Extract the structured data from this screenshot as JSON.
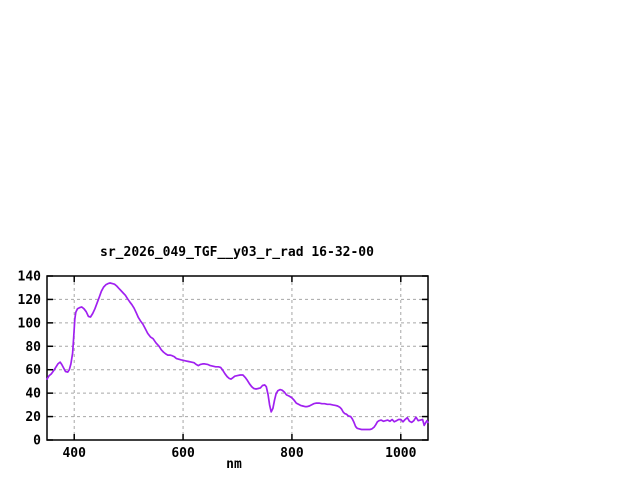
{
  "chart_data": {
    "type": "line",
    "title": "sr_2026_049_TGF__y03_r_rad 16-32-00",
    "xlabel": "nm",
    "ylabel": "",
    "xlim": [
      350,
      1050
    ],
    "ylim": [
      0,
      140
    ],
    "x_ticks": [
      400,
      600,
      800,
      1000
    ],
    "y_ticks": [
      0,
      20,
      40,
      60,
      80,
      100,
      120,
      140
    ],
    "grid": true,
    "legend_position": "none",
    "line_color": "#a020f0",
    "grid_color": "#a6a6a6",
    "border_color": "#000000",
    "background_color": "#ffffff",
    "series": [
      {
        "name": "sr_2026_049_TGF__y03_r_rad",
        "points": [
          [
            350,
            52
          ],
          [
            354,
            55
          ],
          [
            358,
            56.5
          ],
          [
            362,
            59
          ],
          [
            366,
            62
          ],
          [
            370,
            65
          ],
          [
            374,
            66.5
          ],
          [
            377,
            64.5
          ],
          [
            380,
            62
          ],
          [
            384,
            58.5
          ],
          [
            388,
            58
          ],
          [
            391,
            60
          ],
          [
            394,
            65
          ],
          [
            397,
            74
          ],
          [
            399,
            88
          ],
          [
            401,
            103
          ],
          [
            403,
            109
          ],
          [
            406,
            112
          ],
          [
            410,
            113
          ],
          [
            414,
            113.5
          ],
          [
            418,
            112
          ],
          [
            422,
            109.5
          ],
          [
            426,
            105.5
          ],
          [
            430,
            105
          ],
          [
            434,
            108
          ],
          [
            438,
            112
          ],
          [
            442,
            117
          ],
          [
            446,
            122
          ],
          [
            450,
            127
          ],
          [
            454,
            130.5
          ],
          [
            458,
            132.5
          ],
          [
            462,
            133.5
          ],
          [
            466,
            134
          ],
          [
            470,
            133.5
          ],
          [
            474,
            133
          ],
          [
            478,
            131.5
          ],
          [
            482,
            129.5
          ],
          [
            486,
            127.5
          ],
          [
            490,
            125.5
          ],
          [
            494,
            123.5
          ],
          [
            498,
            120.5
          ],
          [
            502,
            118
          ],
          [
            506,
            115.5
          ],
          [
            510,
            112.5
          ],
          [
            514,
            108.5
          ],
          [
            518,
            104.5
          ],
          [
            522,
            101.5
          ],
          [
            526,
            99
          ],
          [
            530,
            95.5
          ],
          [
            535,
            91
          ],
          [
            540,
            88
          ],
          [
            545,
            86.5
          ],
          [
            550,
            83
          ],
          [
            556,
            80
          ],
          [
            560,
            77
          ],
          [
            564,
            75
          ],
          [
            568,
            73.5
          ],
          [
            572,
            72.5
          ],
          [
            576,
            72.5
          ],
          [
            580,
            72
          ],
          [
            584,
            71
          ],
          [
            588,
            69.5
          ],
          [
            592,
            69
          ],
          [
            596,
            68.5
          ],
          [
            600,
            68
          ],
          [
            605,
            67.5
          ],
          [
            610,
            67
          ],
          [
            615,
            66.5
          ],
          [
            620,
            66
          ],
          [
            624,
            64.5
          ],
          [
            628,
            63.5
          ],
          [
            632,
            64.5
          ],
          [
            636,
            65
          ],
          [
            640,
            65
          ],
          [
            645,
            64.5
          ],
          [
            650,
            63.5
          ],
          [
            655,
            63
          ],
          [
            660,
            62.5
          ],
          [
            665,
            62.5
          ],
          [
            669,
            62
          ],
          [
            673,
            59.5
          ],
          [
            677,
            56.5
          ],
          [
            681,
            54
          ],
          [
            685,
            52.5
          ],
          [
            688,
            52
          ],
          [
            691,
            53
          ],
          [
            695,
            54.5
          ],
          [
            700,
            55
          ],
          [
            705,
            55.5
          ],
          [
            710,
            55.5
          ],
          [
            714,
            53.5
          ],
          [
            718,
            51
          ],
          [
            722,
            48
          ],
          [
            726,
            45.5
          ],
          [
            730,
            44
          ],
          [
            734,
            43.5
          ],
          [
            738,
            44
          ],
          [
            742,
            44.5
          ],
          [
            746,
            46.5
          ],
          [
            750,
            47
          ],
          [
            753,
            45.5
          ],
          [
            756,
            39
          ],
          [
            759,
            30
          ],
          [
            762,
            24
          ],
          [
            765,
            27
          ],
          [
            768,
            34
          ],
          [
            771,
            39.5
          ],
          [
            774,
            42
          ],
          [
            778,
            43
          ],
          [
            782,
            42.5
          ],
          [
            786,
            41
          ],
          [
            790,
            38.5
          ],
          [
            795,
            37.5
          ],
          [
            800,
            36
          ],
          [
            804,
            34
          ],
          [
            808,
            31.5
          ],
          [
            812,
            30.5
          ],
          [
            816,
            29.5
          ],
          [
            820,
            29
          ],
          [
            824,
            28.5
          ],
          [
            828,
            28.5
          ],
          [
            832,
            29
          ],
          [
            836,
            30
          ],
          [
            840,
            31
          ],
          [
            845,
            31.5
          ],
          [
            850,
            31.5
          ],
          [
            855,
            31
          ],
          [
            860,
            31
          ],
          [
            865,
            30.5
          ],
          [
            870,
            30.5
          ],
          [
            875,
            30
          ],
          [
            880,
            29.5
          ],
          [
            884,
            29
          ],
          [
            888,
            28
          ],
          [
            891,
            26.5
          ],
          [
            894,
            24
          ],
          [
            897,
            22.5
          ],
          [
            900,
            22
          ],
          [
            904,
            20.5
          ],
          [
            908,
            20
          ],
          [
            911,
            18
          ],
          [
            914,
            15
          ],
          [
            917,
            11.5
          ],
          [
            920,
            10
          ],
          [
            924,
            9.5
          ],
          [
            928,
            9
          ],
          [
            933,
            9
          ],
          [
            938,
            9
          ],
          [
            943,
            9
          ],
          [
            947,
            9.5
          ],
          [
            951,
            11
          ],
          [
            954,
            13
          ],
          [
            957,
            15.5
          ],
          [
            960,
            16.5
          ],
          [
            964,
            17
          ],
          [
            968,
            16
          ],
          [
            972,
            16.5
          ],
          [
            976,
            17
          ],
          [
            980,
            16
          ],
          [
            984,
            17.5
          ],
          [
            988,
            15.5
          ],
          [
            992,
            16.5
          ],
          [
            996,
            17.5
          ],
          [
            1000,
            17.5
          ],
          [
            1004,
            15.5
          ],
          [
            1008,
            17.5
          ],
          [
            1012,
            19
          ],
          [
            1016,
            16
          ],
          [
            1020,
            15
          ],
          [
            1024,
            16.5
          ],
          [
            1028,
            19.5
          ],
          [
            1032,
            16.5
          ],
          [
            1036,
            17
          ],
          [
            1040,
            17.5
          ],
          [
            1043,
            12.5
          ],
          [
            1046,
            15
          ],
          [
            1048,
            16.5
          ],
          [
            1050,
            15
          ]
        ]
      }
    ]
  }
}
